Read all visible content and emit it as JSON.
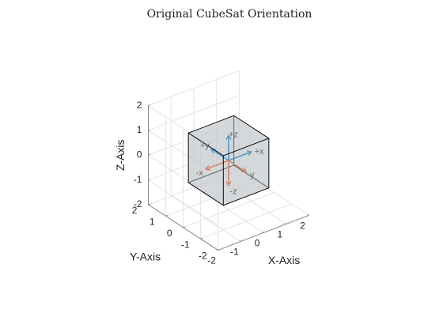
{
  "chart_data": {
    "type": "3d-line",
    "title": "Original CubeSat Orientation",
    "xlabel": "X-Axis",
    "ylabel": "Y-Axis",
    "zlabel": "Z-Axis",
    "xlim": [
      -2,
      2
    ],
    "ylim": [
      -2,
      2
    ],
    "zlim": [
      -2,
      2
    ],
    "xticks": [
      "-2",
      "-1",
      "0",
      "1",
      "2"
    ],
    "yticks": [
      "-2",
      "-1",
      "0",
      "1",
      "2"
    ],
    "zticks": [
      "-2",
      "-1",
      "0",
      "1",
      "2"
    ],
    "grid": true,
    "view": {
      "azimuth_deg": -37.5,
      "elevation_deg": 30
    },
    "cube": {
      "center": [
        0,
        0,
        0
      ],
      "half_size": 1,
      "face_color": "#c4c8cc",
      "edge_color": "#000000"
    },
    "body_axes": [
      {
        "label": "+x",
        "direction": [
          1,
          0,
          0
        ],
        "color": "#0072BD"
      },
      {
        "label": "+y",
        "direction": [
          0,
          1,
          0
        ],
        "color": "#0072BD"
      },
      {
        "label": "+z",
        "direction": [
          0,
          0,
          1
        ],
        "color": "#0072BD"
      },
      {
        "label": "-x",
        "direction": [
          -1,
          0,
          0
        ],
        "color": "#D95319"
      },
      {
        "label": "-y",
        "direction": [
          0,
          -1,
          0
        ],
        "color": "#D95319"
      },
      {
        "label": "-z",
        "direction": [
          0,
          0,
          -1
        ],
        "color": "#D95319"
      }
    ],
    "colors": {
      "grid": "#e4e4e4",
      "box": "#888888",
      "text": "#222222"
    }
  }
}
